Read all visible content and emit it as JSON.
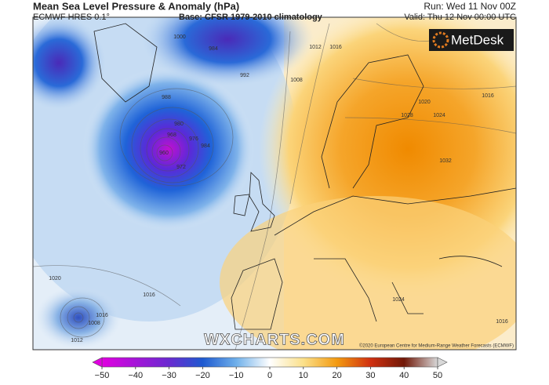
{
  "header": {
    "title": "Mean Sea Level Pressure & Anomaly (hPa)",
    "model": "ECMWF HRES 0.1°",
    "base": "Base: CFSR 1979-2010 climatology",
    "run": "Run: Wed 11 Nov 00Z",
    "valid": "Valid: Thu 12 Nov 00:00 UTC"
  },
  "logo": "MetDesk",
  "watermark": "WXCHARTS.COM",
  "credit": "©2020 European Centre for Medium-Range Weather Forecasts (ECMWF)",
  "map": {
    "contour_labels": [
      960,
      968,
      976,
      984,
      972,
      980,
      988,
      992,
      1000,
      984,
      1008,
      1012,
      1016,
      1020,
      1024,
      1028,
      1032,
      1016,
      1020,
      1016,
      1008,
      1012,
      1016,
      1024,
      1016
    ]
  },
  "colorbar": {
    "range": [
      -50,
      50
    ],
    "ticks": [
      {
        "value": -50,
        "label": "−50"
      },
      {
        "value": -40,
        "label": "−40"
      },
      {
        "value": -30,
        "label": "−30"
      },
      {
        "value": -20,
        "label": "−20"
      },
      {
        "value": -10,
        "label": "−10"
      },
      0,
      10,
      20,
      30,
      40,
      50
    ]
  }
}
